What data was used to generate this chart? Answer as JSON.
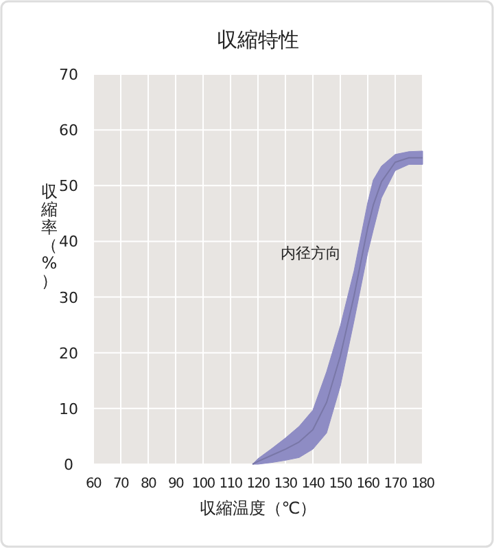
{
  "chart_data": {
    "type": "line",
    "title": "収縮特性",
    "xlabel": "収縮温度（℃）",
    "ylabel": "収縮率（%）",
    "x": [
      118,
      120,
      125,
      130,
      135,
      140,
      145,
      150,
      155,
      160,
      162,
      165,
      170,
      175,
      180
    ],
    "series": [
      {
        "name": "内径方向",
        "color": "#8e8cc4",
        "values": [
          0,
          0.5,
          1.6,
          2.7,
          4,
          6.2,
          11.1,
          19.4,
          30.2,
          42.5,
          46.5,
          50.7,
          54.2,
          55,
          55
        ],
        "upper": [
          0,
          1,
          2.8,
          4.7,
          6.8,
          9.7,
          16.6,
          24.8,
          34.7,
          47,
          51,
          53.5,
          55.6,
          56.1,
          56.2
        ],
        "lower": [
          0,
          0,
          0.3,
          0.7,
          1.2,
          2.7,
          5.6,
          14,
          25.7,
          38,
          42,
          47.8,
          52.7,
          53.8,
          53.8
        ]
      }
    ],
    "xlim": [
      60,
      180
    ],
    "xticks": [
      60,
      70,
      80,
      90,
      100,
      110,
      120,
      130,
      140,
      150,
      160,
      170,
      180
    ],
    "ylim": [
      0,
      70
    ],
    "yticks": [
      0,
      10,
      20,
      30,
      40,
      50,
      60,
      70
    ],
    "grid": true
  }
}
